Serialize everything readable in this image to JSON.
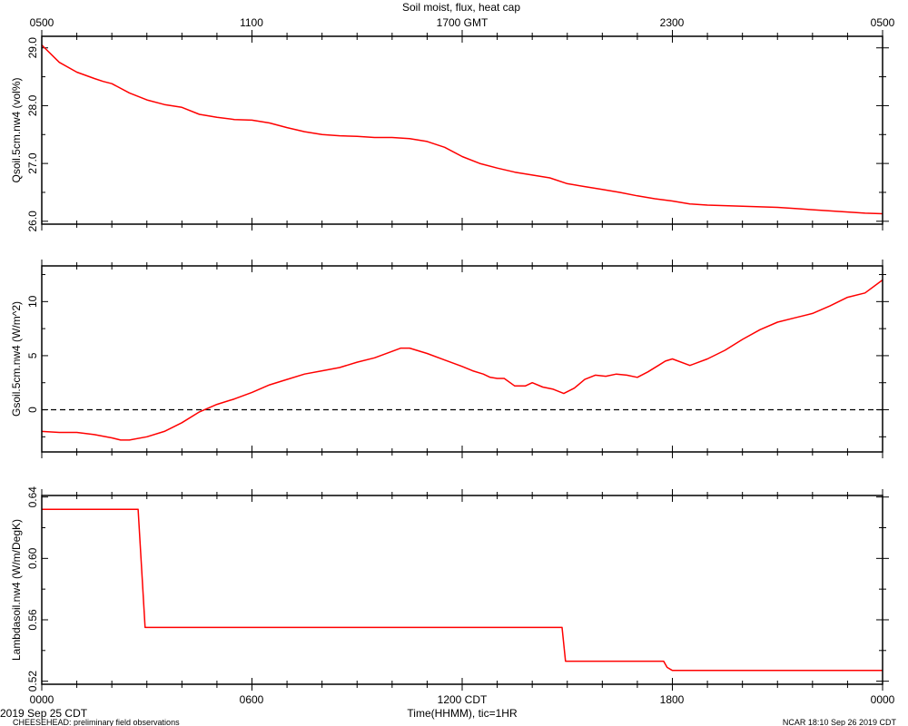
{
  "chart_data": {
    "type": "line",
    "title": "Soil moist, flux, heat cap",
    "top_axis_ticks": [
      "0500",
      "1100",
      "1700 GMT",
      "2300",
      "0500"
    ],
    "bottom_axis_ticks": [
      "0000",
      "0600",
      "1200 CDT",
      "1800",
      "0000"
    ],
    "xlabel": "Time(HHMM), tic=1HR",
    "x_range_hours": [
      0,
      24
    ],
    "date_left": "2019 Sep 25 CDT",
    "footer_left": "CHEESEHEAD: preliminary field observations",
    "footer_right": "NCAR 18:10 Sep 26 2019 CDT",
    "line_color": "#ff0000",
    "panels": [
      {
        "ylabel": "Qsoil.5cm.nw4 (vol%)",
        "ylim": [
          25.95,
          29.2
        ],
        "yticks": [
          26.0,
          27.0,
          28.0,
          29.0
        ],
        "ytick_labels": [
          "26.0",
          "27.0",
          "28.0",
          "29.0"
        ],
        "zero_line": false,
        "series": [
          {
            "x": [
              0,
              0.5,
              1,
              1.5,
              1.75,
              2,
              2.5,
              3,
              3.5,
              4,
              4.5,
              5,
              5.5,
              6,
              6.5,
              7,
              7.5,
              8,
              8.5,
              9,
              9.5,
              10,
              10.5,
              11,
              11.5,
              12,
              12.5,
              13,
              13.5,
              14,
              14.5,
              15,
              15.5,
              16,
              16.5,
              17,
              17.5,
              18,
              18.5,
              19,
              19.5,
              20,
              20.5,
              21,
              21.5,
              22,
              22.5,
              23,
              23.5,
              24
            ],
            "values": [
              29.05,
              28.75,
              28.58,
              28.47,
              28.42,
              28.38,
              28.22,
              28.1,
              28.02,
              27.97,
              27.85,
              27.8,
              27.76,
              27.75,
              27.7,
              27.62,
              27.55,
              27.5,
              27.48,
              27.47,
              27.45,
              27.45,
              27.43,
              27.38,
              27.28,
              27.12,
              27.0,
              26.92,
              26.85,
              26.8,
              26.75,
              26.65,
              26.6,
              26.55,
              26.5,
              26.44,
              26.39,
              26.35,
              26.3,
              26.28,
              26.27,
              26.26,
              26.25,
              26.24,
              26.22,
              26.2,
              26.18,
              26.16,
              26.14,
              26.13
            ]
          }
        ]
      },
      {
        "ylabel": "Gsoil.5cm.nw4 (W/m^2)",
        "ylim": [
          -3.9,
          13.3
        ],
        "yticks": [
          0,
          5,
          10
        ],
        "ytick_labels": [
          "0",
          "5",
          "10"
        ],
        "zero_line": true,
        "series": [
          {
            "x": [
              0,
              0.5,
              1,
              1.5,
              2,
              2.25,
              2.5,
              3,
              3.5,
              4,
              4.5,
              5,
              5.5,
              6,
              6.5,
              7,
              7.5,
              8,
              8.5,
              9,
              9.5,
              10,
              10.25,
              10.5,
              11,
              11.5,
              12,
              12.3,
              12.6,
              12.8,
              13,
              13.2,
              13.5,
              13.8,
              14,
              14.3,
              14.6,
              14.9,
              15.2,
              15.5,
              15.8,
              16.1,
              16.4,
              16.7,
              17.0,
              17.3,
              17.6,
              17.8,
              18,
              18.5,
              19,
              19.5,
              20,
              20.5,
              21,
              21.5,
              22,
              22.5,
              23,
              23.5,
              24
            ],
            "values": [
              -2.0,
              -2.1,
              -2.1,
              -2.3,
              -2.6,
              -2.8,
              -2.8,
              -2.5,
              -2.0,
              -1.2,
              -0.2,
              0.5,
              1.0,
              1.6,
              2.3,
              2.8,
              3.3,
              3.6,
              3.9,
              4.4,
              4.8,
              5.4,
              5.7,
              5.7,
              5.2,
              4.6,
              4.0,
              3.6,
              3.3,
              3.0,
              2.9,
              2.9,
              2.2,
              2.2,
              2.5,
              2.1,
              1.9,
              1.5,
              2.0,
              2.8,
              3.2,
              3.1,
              3.3,
              3.2,
              3.0,
              3.5,
              4.1,
              4.5,
              4.7,
              4.1,
              4.7,
              5.5,
              6.5,
              7.4,
              8.1,
              8.5,
              8.9,
              9.6,
              10.4,
              10.8,
              12.0
            ]
          }
        ]
      },
      {
        "ylabel": "Lambdasoil.nw4 (W/m/DegK)",
        "ylim": [
          0.518,
          0.641
        ],
        "yticks": [
          0.52,
          0.56,
          0.6,
          0.64
        ],
        "ytick_labels": [
          "0.52",
          "0.56",
          "0.60",
          "0.64"
        ],
        "zero_line": false,
        "series": [
          {
            "x": [
              0,
              2.75,
              2.95,
              14.75,
              14.85,
              14.95,
              17.75,
              17.85,
              18.0,
              24
            ],
            "values": [
              0.632,
              0.632,
              0.555,
              0.555,
              0.555,
              0.533,
              0.533,
              0.529,
              0.527,
              0.527
            ]
          }
        ]
      }
    ]
  }
}
